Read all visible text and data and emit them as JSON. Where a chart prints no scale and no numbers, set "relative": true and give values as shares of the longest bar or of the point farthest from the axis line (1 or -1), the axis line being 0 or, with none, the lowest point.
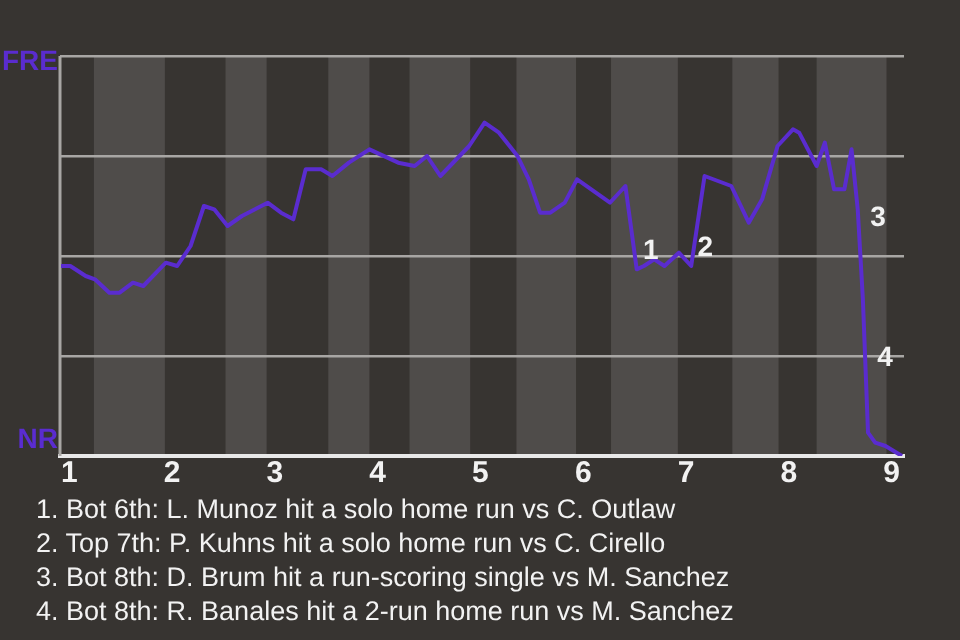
{
  "chart_data": {
    "type": "line",
    "relative": true,
    "x": [
      0.92,
      1.01,
      1.16,
      1.25,
      1.39,
      1.49,
      1.62,
      1.72,
      1.94,
      2.05,
      2.18,
      2.31,
      2.41,
      2.54,
      2.68,
      2.93,
      3.06,
      3.18,
      3.3,
      3.45,
      3.56,
      3.72,
      3.92,
      4.2,
      4.36,
      4.48,
      4.61,
      4.89,
      5.04,
      5.18,
      5.36,
      5.47,
      5.58,
      5.68,
      5.82,
      5.94,
      6.26,
      6.32,
      6.41,
      6.52,
      6.59,
      6.69,
      6.79,
      6.93,
      7.05,
      7.18,
      7.44,
      7.61,
      7.74,
      7.89,
      8.04,
      8.1,
      8.27,
      8.35,
      8.44,
      8.54,
      8.61,
      8.67,
      8.72,
      8.77,
      8.84,
      8.94,
      9.1
    ],
    "series": [
      {
        "values": [
          0.57,
          0.57,
          0.54,
          0.53,
          0.49,
          0.49,
          0.52,
          0.51,
          0.58,
          0.57,
          0.63,
          0.75,
          0.74,
          0.69,
          0.72,
          0.76,
          0.73,
          0.71,
          0.86,
          0.86,
          0.84,
          0.88,
          0.92,
          0.88,
          0.87,
          0.9,
          0.84,
          0.93,
          1,
          0.97,
          0.9,
          0.83,
          0.73,
          0.73,
          0.76,
          0.83,
          0.76,
          0.78,
          0.81,
          0.56,
          0.57,
          0.59,
          0.57,
          0.61,
          0.57,
          0.84,
          0.81,
          0.7,
          0.77,
          0.93,
          0.98,
          0.97,
          0.87,
          0.94,
          0.8,
          0.8,
          0.92,
          0.74,
          0.47,
          0.07,
          0.04,
          0.03,
          0
        ],
        "color": "#5a2ccf"
      }
    ],
    "xlim": [
      0.91,
      9.12
    ],
    "xticks": [
      1,
      2,
      3,
      4,
      5,
      6,
      7,
      8,
      9
    ],
    "grid": "y",
    "legend": false,
    "marker": "none",
    "line_style": "solid",
    "bands": [
      {
        "axis": "x",
        "from": 1.24,
        "to": 1.93,
        "color": "#4f4c4a"
      },
      {
        "axis": "x",
        "from": 2.52,
        "to": 2.92,
        "color": "#4f4c4a"
      },
      {
        "axis": "x",
        "from": 3.52,
        "to": 3.92,
        "color": "#4f4c4a"
      },
      {
        "axis": "x",
        "from": 4.31,
        "to": 4.9,
        "color": "#4f4c4a"
      },
      {
        "axis": "x",
        "from": 5.35,
        "to": 5.93,
        "color": "#4f4c4a"
      },
      {
        "axis": "x",
        "from": 6.27,
        "to": 6.92,
        "color": "#4f4c4a"
      },
      {
        "axis": "x",
        "from": 7.45,
        "to": 7.9,
        "color": "#4f4c4a"
      },
      {
        "axis": "x",
        "from": 8.27,
        "to": 8.95,
        "color": "#4f4c4a"
      }
    ],
    "annotations": [
      "FRE",
      "NR",
      {
        "text": "1",
        "x": 6.52,
        "y": 0.56
      },
      {
        "text": "2",
        "x": 7.05,
        "y": 0.57
      },
      {
        "text": "3",
        "x": 8.73,
        "y": 0.66
      },
      {
        "text": "4",
        "x": 8.8,
        "y": 0.24
      },
      "1. Bot 6th: L. Munoz hit a solo home run vs C. Outlaw",
      "2. Top 7th: P. Kuhns hit a solo home run vs C. Cirello",
      "3. Bot 8th: D. Brum hit a run-scoring single vs M. Sanchez",
      "4. Bot 8th: R. Banales hit a 2-run home run vs M. Sanchez"
    ]
  }
}
